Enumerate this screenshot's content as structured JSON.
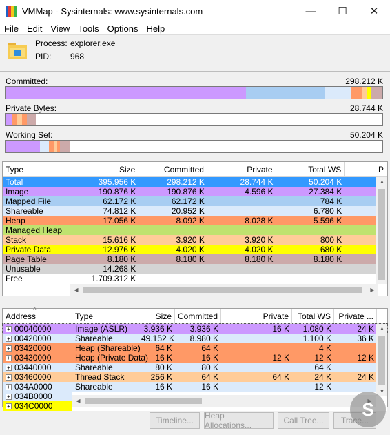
{
  "window": {
    "title": "VMMap - Sysinternals: www.sysinternals.com",
    "minimize": "—",
    "maximize": "☐",
    "close": "✕"
  },
  "menu": [
    "File",
    "Edit",
    "View",
    "Tools",
    "Options",
    "Help"
  ],
  "process": {
    "process_label": "Process:",
    "process_value": "explorer.exe",
    "pid_label": "PID:",
    "pid_value": "968"
  },
  "metrics": {
    "committed": {
      "label": "Committed:",
      "value": "298.212 K",
      "segments": [
        {
          "color": "#cc99ff",
          "fraction": 0.638
        },
        {
          "color": "#a8cdf2",
          "fraction": 0.208
        },
        {
          "color": "#dbeafb",
          "fraction": 0.072
        },
        {
          "color": "#ff9966",
          "fraction": 0.028
        },
        {
          "color": "#ffcc99",
          "fraction": 0.012
        },
        {
          "color": "#ffff00",
          "fraction": 0.013
        },
        {
          "color": "#ccaaaa",
          "fraction": 0.029
        }
      ]
    },
    "private_bytes": {
      "label": "Private Bytes:",
      "value": "28.744 K",
      "segments": [
        {
          "color": "#cc99ff",
          "fraction": 0.016
        },
        {
          "color": "#ff9966",
          "fraction": 0.015
        },
        {
          "color": "#ffcc99",
          "fraction": 0.012
        },
        {
          "color": "#ff9966",
          "fraction": 0.013
        },
        {
          "color": "#ccaaaa",
          "fraction": 0.024
        }
      ]
    },
    "working_set": {
      "label": "Working Set:",
      "value": "50.204 K",
      "segments": [
        {
          "color": "#cc99ff",
          "fraction": 0.091
        },
        {
          "color": "#dbeafb",
          "fraction": 0.025
        },
        {
          "color": "#ff9966",
          "fraction": 0.013
        },
        {
          "color": "#ffcc99",
          "fraction": 0.006
        },
        {
          "color": "#ff9966",
          "fraction": 0.009
        },
        {
          "color": "#ccaaaa",
          "fraction": 0.027
        }
      ]
    }
  },
  "summary_table": {
    "headers": [
      "Type",
      "Size",
      "Committed",
      "Private",
      "Total WS",
      "P"
    ],
    "rows": [
      {
        "type": "Total",
        "size": "395.956 K",
        "committed": "298.212 K",
        "private": "28.744 K",
        "total_ws": "50.204 K",
        "bg": "#3399ff",
        "fg": "#ffffff"
      },
      {
        "type": "Image",
        "size": "190.876 K",
        "committed": "190.876 K",
        "private": "4.596 K",
        "total_ws": "27.384 K",
        "bg": "#cc99ff",
        "fg": "#000000"
      },
      {
        "type": "Mapped File",
        "size": "62.172 K",
        "committed": "62.172 K",
        "private": "",
        "total_ws": "784 K",
        "bg": "#a8cdf2",
        "fg": "#000000"
      },
      {
        "type": "Shareable",
        "size": "74.812 K",
        "committed": "20.952 K",
        "private": "",
        "total_ws": "6.780 K",
        "bg": "#dbeafb",
        "fg": "#000000"
      },
      {
        "type": "Heap",
        "size": "17.056 K",
        "committed": "8.092 K",
        "private": "8.028 K",
        "total_ws": "5.596 K",
        "bg": "#ff9966",
        "fg": "#000000"
      },
      {
        "type": "Managed Heap",
        "size": "",
        "committed": "",
        "private": "",
        "total_ws": "",
        "bg": "#bfe26f",
        "fg": "#000000"
      },
      {
        "type": "Stack",
        "size": "15.616 K",
        "committed": "3.920 K",
        "private": "3.920 K",
        "total_ws": "800 K",
        "bg": "#ffcc99",
        "fg": "#000000"
      },
      {
        "type": "Private Data",
        "size": "12.976 K",
        "committed": "4.020 K",
        "private": "4.020 K",
        "total_ws": "680 K",
        "bg": "#ffff00",
        "fg": "#000000"
      },
      {
        "type": "Page Table",
        "size": "8.180 K",
        "committed": "8.180 K",
        "private": "8.180 K",
        "total_ws": "8.180 K",
        "bg": "#ccaaaa",
        "fg": "#000000"
      },
      {
        "type": "Unusable",
        "size": "14.268 K",
        "committed": "",
        "private": "",
        "total_ws": "",
        "bg": "#d4d4d4",
        "fg": "#000000"
      },
      {
        "type": "Free",
        "size": "1.709.312 K",
        "committed": "",
        "private": "",
        "total_ws": "",
        "bg": "#ffffff",
        "fg": "#000000"
      }
    ]
  },
  "detail_table": {
    "headers": [
      "Address",
      "Type",
      "Size",
      "Committed",
      "Private",
      "Total WS",
      "Private ..."
    ],
    "sort_glyph": "^",
    "rows": [
      {
        "address": "00040000",
        "type": "Image (ASLR)",
        "size": "3.936 K",
        "committed": "3.936 K",
        "private": "16 K",
        "total_ws": "1.080 K",
        "private_ws": "24 K",
        "bg": "#cc99ff",
        "addr_bg": "#cc99ff"
      },
      {
        "address": "00420000",
        "type": "Shareable",
        "size": "49.152 K",
        "committed": "8.980 K",
        "private": "",
        "total_ws": "1.100 K",
        "private_ws": "36 K",
        "bg": "#dbeafb",
        "addr_bg": "#dbeafb"
      },
      {
        "address": "03420000",
        "type": "Heap (Shareable)",
        "size": "64 K",
        "committed": "64 K",
        "private": "",
        "total_ws": "4 K",
        "private_ws": "",
        "bg": "#ff9966",
        "addr_bg": "#ff9966"
      },
      {
        "address": "03430000",
        "type": "Heap (Private Data)",
        "size": "16 K",
        "committed": "16 K",
        "private": "12 K",
        "total_ws": "12 K",
        "private_ws": "12 K",
        "bg": "#ff9966",
        "addr_bg": "#ff9966"
      },
      {
        "address": "03440000",
        "type": "Shareable",
        "size": "80 K",
        "committed": "80 K",
        "private": "",
        "total_ws": "64 K",
        "private_ws": "",
        "bg": "#dbeafb",
        "addr_bg": "#dbeafb"
      },
      {
        "address": "03460000",
        "type": "Thread Stack",
        "size": "256 K",
        "committed": "64 K",
        "private": "64 K",
        "total_ws": "24 K",
        "private_ws": "24 K",
        "bg": "#ffcc99",
        "addr_bg": "#ffcc99"
      },
      {
        "address": "034A0000",
        "type": "Shareable",
        "size": "16 K",
        "committed": "16 K",
        "private": "",
        "total_ws": "12 K",
        "private_ws": "",
        "bg": "#dbeafb",
        "addr_bg": "#dbeafb"
      },
      {
        "address": "034B0000",
        "type": "",
        "size": "",
        "committed": "",
        "private": "",
        "total_ws": "",
        "private_ws": "",
        "bg": "#ffffff",
        "addr_bg": "#dbeafb"
      },
      {
        "address": "034C0000",
        "type": "",
        "size": "",
        "committed": "",
        "private": "",
        "total_ws": "",
        "private_ws": "",
        "bg": "#ffffff",
        "addr_bg": "#ffff00"
      }
    ]
  },
  "buttons": {
    "timeline": "Timeline...",
    "heap_allocations": "Heap Allocations...",
    "call_tree": "Call Tree...",
    "trace": "Trace..."
  },
  "watermark_glyph": "S"
}
